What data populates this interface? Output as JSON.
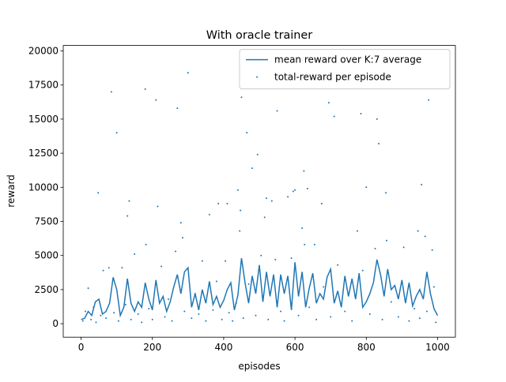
{
  "chart_data": {
    "type": "line",
    "title": "With oracle trainer",
    "x_label": "episodes",
    "y_label": "reward",
    "xlim": [
      -50,
      1050
    ],
    "xticks": [
      0,
      200,
      400,
      600,
      800,
      1000
    ],
    "ylim": [
      -990,
      20400
    ],
    "yticks": [
      0,
      2500,
      5000,
      7500,
      10000,
      12500,
      15000,
      17500,
      20000
    ],
    "legend": "upper right",
    "series": [
      {
        "name": "mean reward over K:7 average",
        "type": "line",
        "color": "#1f77b4",
        "x": [
          0,
          10,
          20,
          30,
          40,
          50,
          60,
          70,
          80,
          90,
          100,
          110,
          120,
          130,
          140,
          150,
          160,
          170,
          180,
          190,
          200,
          210,
          220,
          230,
          240,
          250,
          260,
          270,
          280,
          290,
          300,
          310,
          320,
          330,
          340,
          350,
          360,
          370,
          380,
          390,
          400,
          410,
          420,
          430,
          440,
          450,
          460,
          470,
          480,
          490,
          500,
          510,
          520,
          530,
          540,
          550,
          560,
          570,
          580,
          590,
          600,
          610,
          620,
          630,
          640,
          650,
          660,
          670,
          680,
          690,
          700,
          710,
          720,
          730,
          740,
          750,
          760,
          770,
          780,
          790,
          800,
          810,
          820,
          830,
          840,
          850,
          860,
          870,
          880,
          890,
          900,
          910,
          920,
          930,
          940,
          950,
          960,
          970,
          980,
          990,
          1000
        ],
        "values": [
          300,
          400,
          900,
          600,
          1600,
          1800,
          700,
          900,
          1500,
          3400,
          2500,
          600,
          1200,
          3300,
          1500,
          900,
          1600,
          1200,
          3000,
          1800,
          1000,
          3200,
          1500,
          2000,
          900,
          1600,
          2700,
          3600,
          2200,
          3800,
          4100,
          1200,
          2200,
          1000,
          2500,
          1500,
          3100,
          1400,
          2000,
          1200,
          1700,
          2500,
          3000,
          1000,
          2100,
          4800,
          3000,
          1500,
          3500,
          2200,
          4300,
          1600,
          3800,
          2000,
          3600,
          1200,
          3600,
          2200,
          3500,
          1000,
          4500,
          2000,
          3800,
          1200,
          2600,
          3700,
          1500,
          2200,
          1800,
          3400,
          4000,
          1500,
          2400,
          1200,
          3500,
          2000,
          3300,
          1800,
          3700,
          1200,
          1600,
          2200,
          3000,
          4700,
          3600,
          2000,
          4000,
          2500,
          2800,
          1800,
          3200,
          1500,
          3000,
          1300,
          2000,
          2500,
          1800,
          3800,
          2200,
          1100,
          600
        ]
      },
      {
        "name": "total-reward per episode",
        "type": "scatter",
        "color": "#1f77b4",
        "x": [
          85,
          100,
          48,
          130,
          135,
          180,
          210,
          215,
          182,
          270,
          280,
          285,
          300,
          360,
          385,
          410,
          440,
          445,
          450,
          447,
          465,
          480,
          495,
          520,
          515,
          535,
          550,
          580,
          595,
          600,
          620,
          625,
          635,
          627,
          655,
          675,
          695,
          710,
          775,
          785,
          800,
          830,
          835,
          855,
          857,
          955,
          965,
          975,
          945,
          985,
          5,
          12,
          20,
          28,
          35,
          42,
          55,
          62,
          70,
          78,
          92,
          105,
          115,
          125,
          140,
          150,
          160,
          170,
          190,
          200,
          225,
          235,
          245,
          255,
          265,
          290,
          310,
          320,
          330,
          340,
          350,
          370,
          380,
          395,
          405,
          415,
          425,
          435,
          455,
          470,
          490,
          505,
          525,
          545,
          560,
          570,
          590,
          610,
          640,
          660,
          680,
          700,
          720,
          740,
          760,
          790,
          810,
          825,
          845,
          870,
          890,
          905,
          920,
          935,
          950,
          970,
          990,
          995
        ],
        "values": [
          17000,
          14000,
          9600,
          7900,
          9000,
          17200,
          16400,
          8600,
          5800,
          15800,
          7400,
          6300,
          18400,
          8000,
          8800,
          8800,
          9800,
          6800,
          16600,
          8300,
          14000,
          11400,
          12400,
          9200,
          7800,
          9000,
          15600,
          9300,
          9700,
          9800,
          7000,
          11200,
          9900,
          5800,
          5800,
          8800,
          16200,
          15200,
          6800,
          15400,
          10000,
          15000,
          13200,
          9600,
          6100,
          10200,
          6400,
          16400,
          6800,
          5400,
          200,
          900,
          2600,
          300,
          1200,
          100,
          600,
          3900,
          400,
          4100,
          800,
          200,
          4100,
          1400,
          300,
          5100,
          700,
          100,
          1100,
          300,
          4200,
          500,
          1800,
          200,
          5300,
          900,
          400,
          2200,
          700,
          4600,
          200,
          1000,
          3100,
          300,
          4600,
          800,
          200,
          1500,
          400,
          2900,
          600,
          5000,
          300,
          4700,
          900,
          200,
          4800,
          600,
          1200,
          300,
          2700,
          500,
          4300,
          900,
          200,
          3900,
          700,
          5500,
          300,
          1600,
          500,
          5600,
          200,
          1100,
          400,
          900,
          2700,
          100
        ]
      }
    ]
  }
}
